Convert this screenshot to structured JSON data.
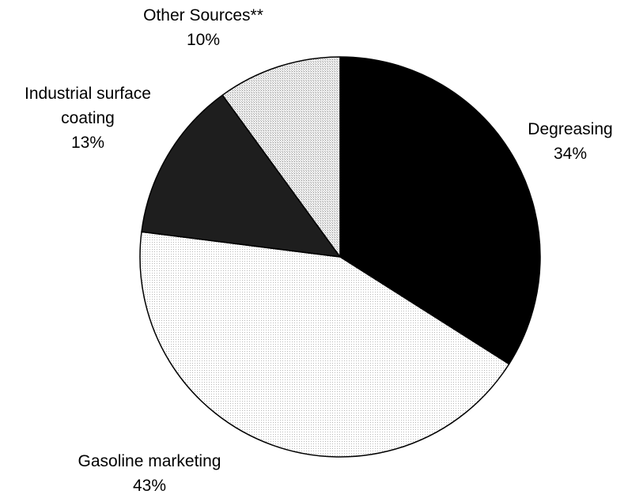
{
  "chart_data": {
    "type": "pie",
    "start_angle_deg": 90,
    "direction": "clockwise",
    "slices": [
      {
        "label": "Degreasing",
        "value": 34,
        "value_label": "34%",
        "fill": "#000000"
      },
      {
        "label": "Gasoline marketing",
        "value": 43,
        "value_label": "43%",
        "fill": "#ffffff",
        "texture": "fine-dots"
      },
      {
        "label": "Industrial surface coating",
        "value": 13,
        "value_label": "13%",
        "fill": "#1e1e1e"
      },
      {
        "label": "Other Sources**",
        "value": 10,
        "value_label": "10%",
        "fill": "#e6e6e6",
        "texture": "fine-dots"
      }
    ],
    "label_lines": [
      [
        "Degreasing",
        "34%"
      ],
      [
        "Gasoline marketing",
        "43%"
      ],
      [
        "Industrial surface",
        "coating",
        "13%"
      ],
      [
        "Other Sources**",
        "10%"
      ]
    ]
  }
}
